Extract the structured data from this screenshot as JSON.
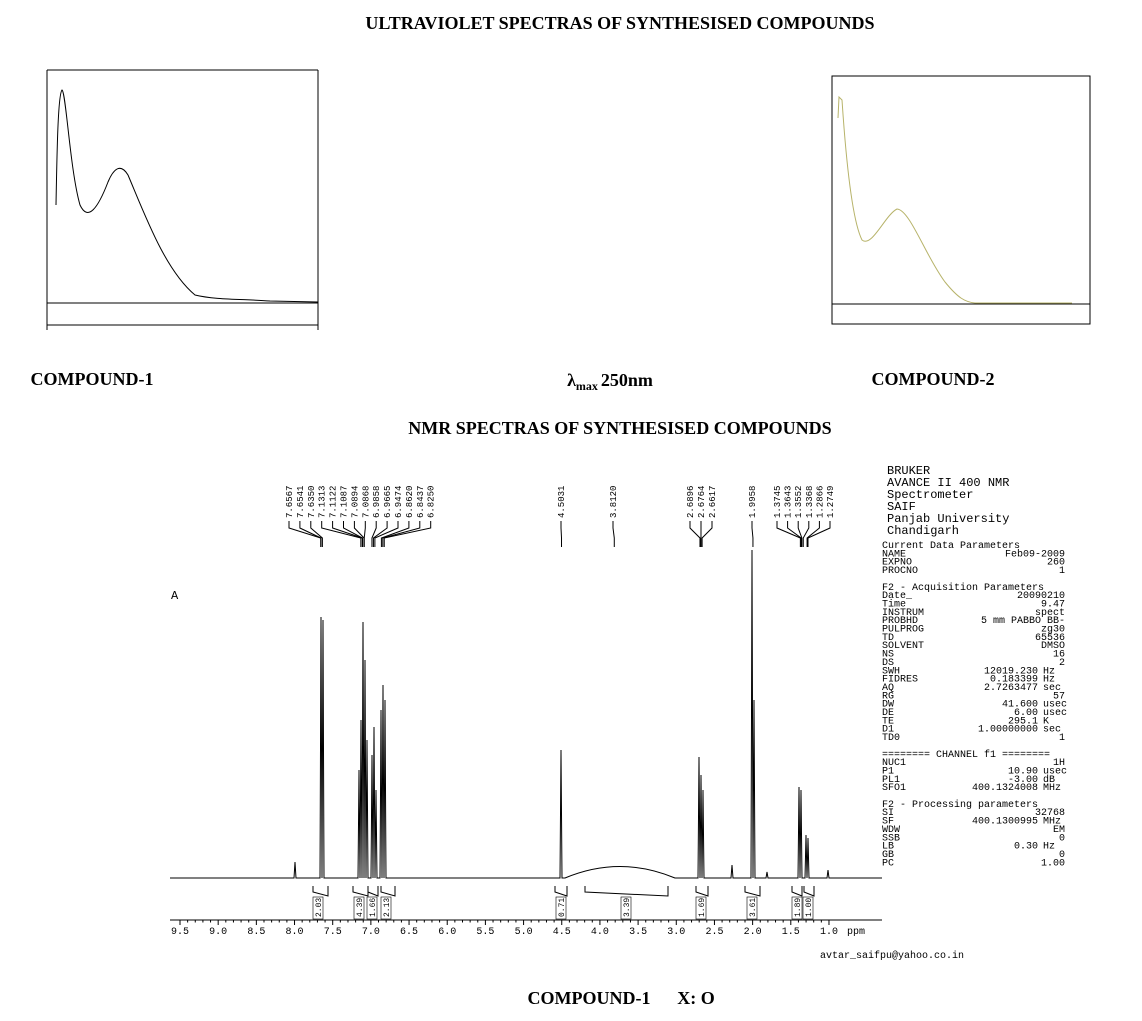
{
  "uv": {
    "title": "ULTRAVIOLET SPECTRAS OF SYNTHESISED COMPOUNDS",
    "label_1": "COMPOUND-1",
    "lambda": {
      "symbol": "λ",
      "sub": "max",
      "value": "250nm"
    },
    "label_2": "COMPOUND-2"
  },
  "nmr": {
    "title": "NMR SPECTRAS OF SYNTHESISED COMPOUNDS",
    "panel_label": "A",
    "peaks": [
      "7.6567",
      "7.6541",
      "7.6350",
      "7.1313",
      "7.1122",
      "7.1087",
      "7.0894",
      "7.0868",
      "6.9858",
      "6.9665",
      "6.9474",
      "6.8620",
      "6.8437",
      "6.8250",
      "4.5031",
      "3.8120",
      "2.6896",
      "2.6764",
      "2.6617",
      "1.9958",
      "1.3745",
      "1.3643",
      "1.3552",
      "1.3368",
      "1.2866",
      "1.2749"
    ],
    "integrals": [
      "2.03",
      "4.39",
      "1.66",
      "2.13",
      "0.71",
      "3.39",
      "1.69",
      "3.61",
      "1.89",
      "1.00"
    ],
    "axis_ticks": [
      "9.5",
      "9.0",
      "8.5",
      "8.0",
      "7.5",
      "7.0",
      "6.5",
      "6.0",
      "5.5",
      "5.0",
      "4.5",
      "4.0",
      "3.5",
      "3.0",
      "2.5",
      "2.0",
      "1.5",
      "1.0"
    ],
    "axis_unit": "ppm",
    "email": "avtar_saifpu@yahoo.co.in"
  },
  "params": {
    "header": [
      "BRUKER",
      "AVANCE II 400 NMR",
      "Spectrometer",
      "SAIF",
      "Panjab University",
      "Chandigarh"
    ],
    "sections": [
      {
        "title": "Current Data Parameters",
        "rows": [
          [
            "NAME",
            "Feb09-2009"
          ],
          [
            "EXPNO",
            "260"
          ],
          [
            "PROCNO",
            "1"
          ]
        ]
      },
      {
        "title": "F2 - Acquisition Parameters",
        "rows": [
          [
            "Date_",
            "20090210"
          ],
          [
            "Time",
            "9.47"
          ],
          [
            "INSTRUM",
            "spect"
          ],
          [
            "PROBHD",
            "5 mm PABBO BB-"
          ],
          [
            "PULPROG",
            "zg30"
          ],
          [
            "TD",
            "65536"
          ],
          [
            "SOLVENT",
            "DMSO"
          ],
          [
            "NS",
            "16"
          ],
          [
            "DS",
            "2"
          ],
          [
            "SWH",
            "12019.230",
            "Hz"
          ],
          [
            "FIDRES",
            "0.183399",
            "Hz"
          ],
          [
            "AQ",
            "2.7263477",
            "sec"
          ],
          [
            "RG",
            "57"
          ],
          [
            "DW",
            "41.600",
            "usec"
          ],
          [
            "DE",
            "6.00",
            "usec"
          ],
          [
            "TE",
            "295.1",
            "K"
          ],
          [
            "D1",
            "1.00000000",
            "sec"
          ],
          [
            "TD0",
            "1"
          ]
        ]
      },
      {
        "title": "======== CHANNEL f1 ========",
        "rows": [
          [
            "NUC1",
            "1H"
          ],
          [
            "P1",
            "10.90",
            "usec"
          ],
          [
            "PL1",
            "-3.00",
            "dB"
          ],
          [
            "SFO1",
            "400.1324008",
            "MHz"
          ]
        ]
      },
      {
        "title": "F2 - Processing parameters",
        "rows": [
          [
            "SI",
            "32768"
          ],
          [
            "SF",
            "400.1300995",
            "MHz"
          ],
          [
            "WDW",
            "EM"
          ],
          [
            "SSB",
            "0"
          ],
          [
            "LB",
            "0.30",
            "Hz"
          ],
          [
            "GB",
            "0"
          ],
          [
            "PC",
            "1.00"
          ]
        ]
      }
    ]
  },
  "caption": {
    "compound": "COMPOUND-1",
    "substituent": "X: O"
  }
}
